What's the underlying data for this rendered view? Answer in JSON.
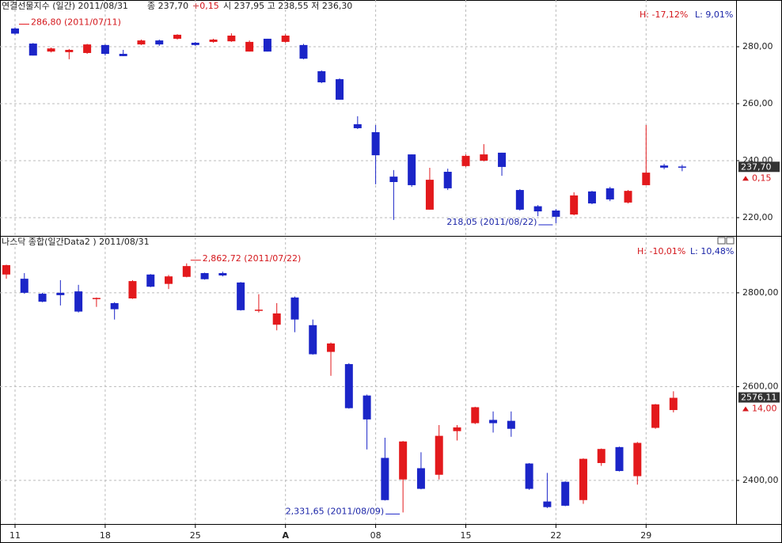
{
  "chart_data": [
    {
      "type": "candlestick",
      "title": "연결선물지수 (일간) 2011/08/31",
      "close_label": "종 237,70",
      "change_label": "+0,15",
      "ohlc_label": "시 237,95  고 238,55  저 236,30",
      "high_pct_label": "H: -17,12%",
      "low_pct_label": "L: 9,01%",
      "high_annotation": "286,80 (2011/07/11)",
      "low_annotation": "218,05 (2011/08/22)",
      "last_label": "237,70",
      "last_change_label": "0,15",
      "categories": [
        "11",
        null,
        null,
        null,
        null,
        "18",
        null,
        null,
        null,
        null,
        "25",
        null,
        null,
        null,
        null,
        "A",
        null,
        null,
        null,
        null,
        "08",
        null,
        null,
        null,
        null,
        "15",
        null,
        null,
        null,
        null,
        "22",
        null,
        null,
        null,
        null,
        "29",
        null,
        null
      ],
      "open": [
        286.4,
        281.1,
        278.3,
        278.1,
        277.8,
        280.6,
        277.5,
        280.8,
        282.2,
        282.8,
        281.4,
        281.7,
        281.9,
        278.3,
        282.8,
        281.7,
        280.6,
        271.4,
        268.6,
        252.8,
        250.0,
        234.4,
        242.2,
        222.8,
        236.1,
        238.1,
        240.0,
        242.8,
        229.7,
        224.0,
        222.5,
        221.1,
        229.2,
        230.3,
        225.3,
        231.4,
        238.3,
        237.95
      ],
      "high": [
        286.8,
        281.3,
        279.7,
        279.2,
        281.0,
        280.8,
        278.9,
        282.5,
        282.5,
        284.4,
        281.7,
        282.8,
        284.7,
        282.2,
        282.8,
        284.4,
        281.0,
        271.7,
        268.9,
        255.6,
        252.5,
        236.7,
        242.2,
        237.5,
        237.2,
        242.2,
        245.8,
        242.8,
        230.0,
        224.4,
        223.0,
        228.9,
        229.4,
        230.8,
        229.7,
        252.5,
        238.9,
        238.55
      ],
      "low": [
        284.2,
        276.9,
        278.0,
        275.6,
        277.5,
        276.9,
        276.7,
        280.6,
        280.3,
        282.5,
        280.3,
        281.4,
        281.7,
        278.3,
        278.3,
        281.4,
        275.6,
        267.2,
        261.4,
        251.1,
        231.7,
        219.2,
        230.8,
        222.8,
        229.7,
        237.8,
        239.7,
        234.7,
        222.5,
        220.5,
        218.05,
        220.8,
        224.7,
        225.8,
        225.0,
        231.4,
        237.0,
        236.3
      ],
      "close": [
        284.6,
        276.9,
        279.4,
        278.9,
        280.8,
        277.5,
        276.7,
        282.2,
        280.8,
        284.2,
        280.6,
        282.5,
        283.9,
        281.7,
        278.3,
        283.9,
        275.8,
        267.5,
        261.4,
        251.4,
        241.9,
        232.5,
        231.4,
        233.3,
        230.3,
        241.7,
        242.2,
        237.8,
        222.8,
        222.2,
        220.3,
        227.8,
        225.0,
        226.4,
        229.4,
        235.8,
        237.55,
        237.7
      ],
      "up_color": "#e3191c",
      "down_color": "#1b25c8",
      "ylim": [
        213.6,
        296.4
      ],
      "yticks": [
        {
          "value": 220,
          "label": "220,00"
        },
        {
          "value": 240,
          "label": "240,00"
        },
        {
          "value": 260,
          "label": "260,00"
        },
        {
          "value": 280,
          "label": "280,00"
        }
      ],
      "grid": true
    },
    {
      "type": "candlestick",
      "title": "나스닥 종합(일간Data2 ) 2011/08/31",
      "high_pct_label": "H: -10,01%",
      "low_pct_label": "L: 10,48%",
      "high_annotation": "2,862,72 (2011/07/22)",
      "low_annotation": "2,331,65 (2011/08/09)",
      "last_label": "2576,11",
      "last_change_label": "14,00",
      "open": [
        2839,
        2830,
        2798,
        2800,
        2803,
        2787,
        2778,
        2788,
        2839,
        2819,
        2834,
        2842,
        2842,
        2822,
        2762,
        2732,
        2790,
        2731,
        2674,
        2648,
        2581,
        2448,
        2402,
        2426,
        2412,
        2505,
        2522,
        2529,
        2527,
        2436,
        2355,
        2397,
        2358,
        2437,
        2471,
        2409,
        2512,
        2550
      ],
      "high": [
        2860,
        2842,
        2800,
        2827,
        2817,
        2790,
        2780,
        2827,
        2840,
        2838,
        2862.72,
        2843,
        2845,
        2823,
        2797,
        2778,
        2792,
        2743,
        2694,
        2650,
        2583,
        2491,
        2484,
        2460,
        2518,
        2518,
        2557,
        2547,
        2547,
        2437,
        2416,
        2398,
        2447,
        2468,
        2472,
        2482,
        2563,
        2590
      ],
      "low": [
        2830,
        2798,
        2780,
        2773,
        2758,
        2770,
        2743,
        2787,
        2812,
        2808,
        2833,
        2828,
        2835,
        2762,
        2758,
        2720,
        2716,
        2668,
        2623,
        2553,
        2466,
        2357,
        2331.65,
        2381,
        2402,
        2485,
        2520,
        2502,
        2493,
        2380,
        2341,
        2345,
        2350,
        2431,
        2419,
        2391,
        2510,
        2545
      ],
      "close": [
        2859,
        2800,
        2781,
        2795,
        2760,
        2789,
        2765,
        2825,
        2813,
        2835,
        2857,
        2829,
        2837,
        2763,
        2764,
        2756,
        2743,
        2669,
        2692,
        2554,
        2530,
        2358,
        2483,
        2382,
        2495,
        2513,
        2556,
        2522,
        2510,
        2382,
        2343,
        2346,
        2446,
        2467,
        2420,
        2480,
        2562.11,
        2576.11
      ],
      "up_color": "#e3191c",
      "down_color": "#1b25c8",
      "ylim": [
        2307,
        2918
      ],
      "yticks": [
        {
          "value": 2400,
          "label": "2400,00"
        },
        {
          "value": 2600,
          "label": "2600,00"
        },
        {
          "value": 2800,
          "label": "2800,00"
        }
      ],
      "grid": true
    }
  ]
}
